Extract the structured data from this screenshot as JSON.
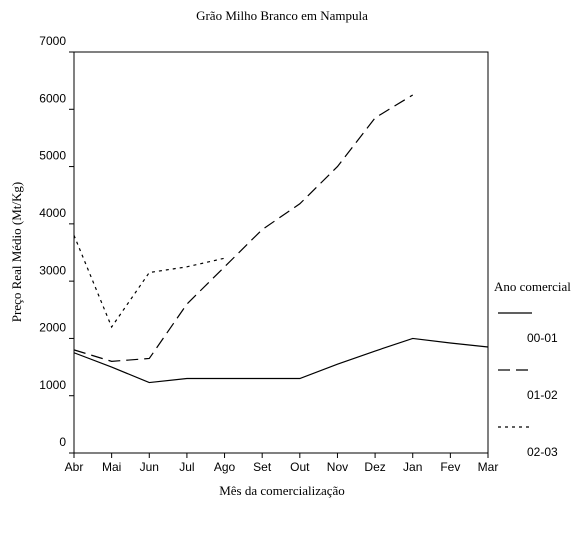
{
  "chart_data": {
    "type": "line",
    "title": "Grão Milho Branco em Nampula",
    "x_label": "Mês da comercialização",
    "y_label": "Preço Real Médio (Mt/Kg)",
    "legend_title": "Ano comercial",
    "legend": "right",
    "categories": [
      "Abr",
      "Mai",
      "Jun",
      "Jul",
      "Ago",
      "Set",
      "Out",
      "Nov",
      "Dez",
      "Jan",
      "Fev",
      "Mar"
    ],
    "ylim": [
      0,
      7000
    ],
    "yticks": [
      0,
      1000,
      2000,
      3000,
      4000,
      5000,
      6000,
      7000
    ],
    "series": [
      {
        "name": "00-01",
        "color": "#000000",
        "dash": "solid",
        "values": [
          1750,
          1500,
          1230,
          1300,
          1300,
          1300,
          1300,
          1550,
          1780,
          2000,
          1920,
          1850
        ]
      },
      {
        "name": "01-02",
        "color": "#000000",
        "dash": "dashed",
        "values": [
          1800,
          1600,
          1650,
          2600,
          3250,
          3900,
          4350,
          5000,
          5850,
          6250,
          null,
          null
        ]
      },
      {
        "name": "02-03",
        "color": "#000000",
        "dash": "dotted",
        "values": [
          3800,
          2200,
          3150,
          3250,
          3400,
          null,
          null,
          null,
          null,
          null,
          null,
          null
        ]
      }
    ]
  }
}
